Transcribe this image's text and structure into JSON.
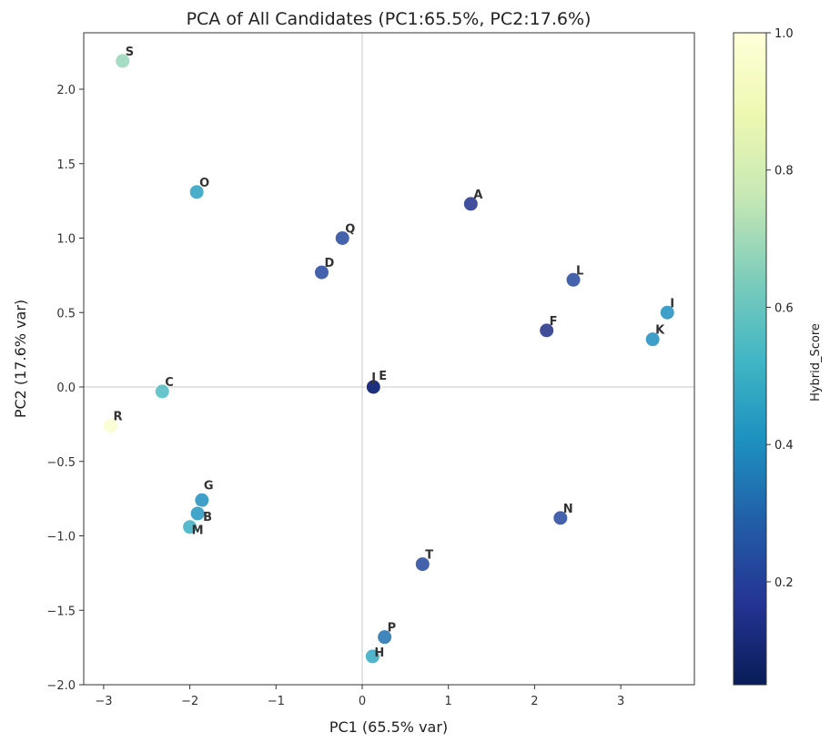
{
  "chart_data": {
    "type": "scatter",
    "title": "PCA of All Candidates (PC1:65.5%, PC2:17.6%)",
    "xlabel": "PC1 (65.5% var)",
    "ylabel": "PC2 (17.6% var)",
    "xlim": [
      -3.3,
      3.8
    ],
    "ylim": [
      -2.0,
      2.3
    ],
    "xticks": [
      -3,
      -2,
      -1,
      0,
      1,
      2,
      3
    ],
    "xtick_labels": [
      "−3",
      "−2",
      "−1",
      "0",
      "1",
      "2",
      "3"
    ],
    "yticks": [
      -2.0,
      -1.5,
      -1.0,
      -0.5,
      0.0,
      0.5,
      1.0,
      1.5,
      2.0
    ],
    "ytick_labels": [
      "−2.0",
      "−1.5",
      "−1.0",
      "−0.5",
      "0.0",
      "0.5",
      "1.0",
      "1.5",
      "2.0"
    ],
    "reference_lines": {
      "x": 0,
      "y": 0
    },
    "grid": false,
    "colorbar": {
      "label": "Hybrid_Score",
      "colormap": "YlGnBu_r",
      "range": [
        0.05,
        1.0
      ],
      "ticks": [
        0.2,
        0.4,
        0.6,
        0.8,
        1.0
      ],
      "tick_labels": [
        "0.2",
        "0.4",
        "0.6",
        "0.8",
        "1.0"
      ]
    },
    "points": [
      {
        "label": "S",
        "x": -2.78,
        "y": 2.19,
        "score": 0.68
      },
      {
        "label": "O",
        "x": -1.92,
        "y": 1.31,
        "score": 0.45
      },
      {
        "label": "Q",
        "x": -0.23,
        "y": 1.0,
        "score": 0.22
      },
      {
        "label": "D",
        "x": -0.47,
        "y": 0.77,
        "score": 0.22
      },
      {
        "label": "A",
        "x": 1.26,
        "y": 1.23,
        "score": 0.15
      },
      {
        "label": "L",
        "x": 2.45,
        "y": 0.72,
        "score": 0.22
      },
      {
        "label": "F",
        "x": 2.14,
        "y": 0.38,
        "score": 0.14
      },
      {
        "label": "I",
        "x": 3.54,
        "y": 0.5,
        "score": 0.4
      },
      {
        "label": "K",
        "x": 3.37,
        "y": 0.32,
        "score": 0.4
      },
      {
        "label": "J",
        "x": 0.13,
        "y": 0.0,
        "score": 0.12
      },
      {
        "label": "E",
        "x": 0.13,
        "y": 0.0,
        "score": 0.12
      },
      {
        "label": "C",
        "x": -2.32,
        "y": -0.03,
        "score": 0.55
      },
      {
        "label": "R",
        "x": -2.92,
        "y": -0.26,
        "score": 0.97
      },
      {
        "label": "G",
        "x": -1.86,
        "y": -0.76,
        "score": 0.4
      },
      {
        "label": "B",
        "x": -1.91,
        "y": -0.85,
        "score": 0.42
      },
      {
        "label": "M",
        "x": -2.0,
        "y": -0.94,
        "score": 0.5
      },
      {
        "label": "N",
        "x": 2.3,
        "y": -0.88,
        "score": 0.22
      },
      {
        "label": "T",
        "x": 0.7,
        "y": -1.19,
        "score": 0.22
      },
      {
        "label": "P",
        "x": 0.26,
        "y": -1.68,
        "score": 0.33
      },
      {
        "label": "H",
        "x": 0.12,
        "y": -1.81,
        "score": 0.48
      }
    ]
  }
}
